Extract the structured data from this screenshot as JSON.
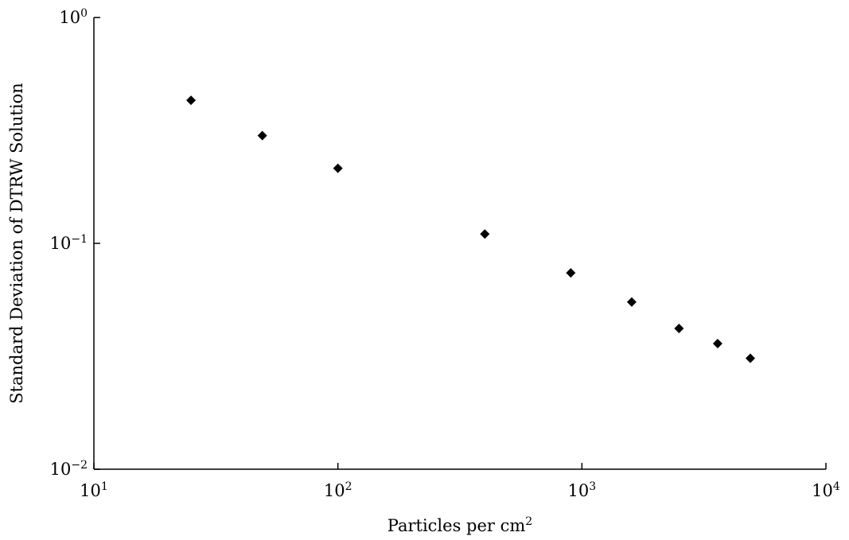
{
  "chart_data": {
    "type": "scatter",
    "title": "",
    "xlabel": "Particles per cm",
    "xlabel_sup": "2",
    "ylabel": "Standard Deviation of DTRW Solution",
    "xscale": "log",
    "yscale": "log",
    "xlim": [
      10,
      10000
    ],
    "ylim": [
      0.01,
      1
    ],
    "grid": false,
    "legend": "none",
    "marker": "diamond",
    "marker_color": "#000000",
    "x_ticks": [
      {
        "value": 10,
        "base": "10",
        "exp": "1"
      },
      {
        "value": 100,
        "base": "10",
        "exp": "2"
      },
      {
        "value": 1000,
        "base": "10",
        "exp": "3"
      },
      {
        "value": 10000,
        "base": "10",
        "exp": "4"
      }
    ],
    "y_ticks": [
      {
        "value": 0.01,
        "base": "10",
        "exp": "−2"
      },
      {
        "value": 0.1,
        "base": "10",
        "exp": "−1"
      },
      {
        "value": 1,
        "base": "10",
        "exp": "0"
      }
    ],
    "series": [
      {
        "x": [
          25,
          49,
          100,
          400,
          900,
          1600,
          2500,
          3600,
          4900
        ],
        "y": [
          0.43,
          0.3,
          0.215,
          0.11,
          0.074,
          0.055,
          0.042,
          0.036,
          0.031
        ]
      }
    ]
  }
}
